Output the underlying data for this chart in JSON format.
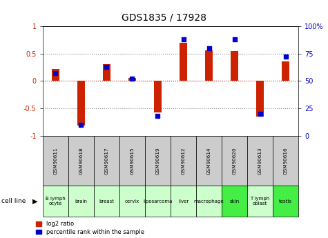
{
  "title": "GDS1835 / 17928",
  "gsm_labels": [
    "GSM90611",
    "GSM90618",
    "GSM90617",
    "GSM90615",
    "GSM90619",
    "GSM90612",
    "GSM90614",
    "GSM90620",
    "GSM90613",
    "GSM90616"
  ],
  "cell_labels": [
    "B lymph\nocyte",
    "brain",
    "breast",
    "cervix",
    "liposarcoma",
    "liver",
    "macrophage",
    "skin",
    "T lymph\noblast",
    "testis"
  ],
  "cell_colors": [
    "#ccffcc",
    "#ccffcc",
    "#ccffcc",
    "#ccffcc",
    "#ccffcc",
    "#ccffcc",
    "#ccffcc",
    "#44ee44",
    "#ccffcc",
    "#44ee44"
  ],
  "gsm_bg": "#cccccc",
  "log2_ratio": [
    0.22,
    -0.82,
    0.3,
    0.05,
    -0.58,
    0.7,
    0.56,
    0.55,
    -0.65,
    0.36
  ],
  "percentile_rank": [
    57,
    10,
    63,
    52,
    18,
    88,
    80,
    88,
    20,
    72
  ],
  "ylim": [
    -1,
    1
  ],
  "right_ylim": [
    0,
    100
  ],
  "bar_color": "#cc2200",
  "dot_color": "#0000cc",
  "bg_color": "#ffffff",
  "zero_line_color": "#cc0000",
  "legend_red": "log2 ratio",
  "legend_blue": "percentile rank within the sample",
  "cell_line_label": "cell line"
}
